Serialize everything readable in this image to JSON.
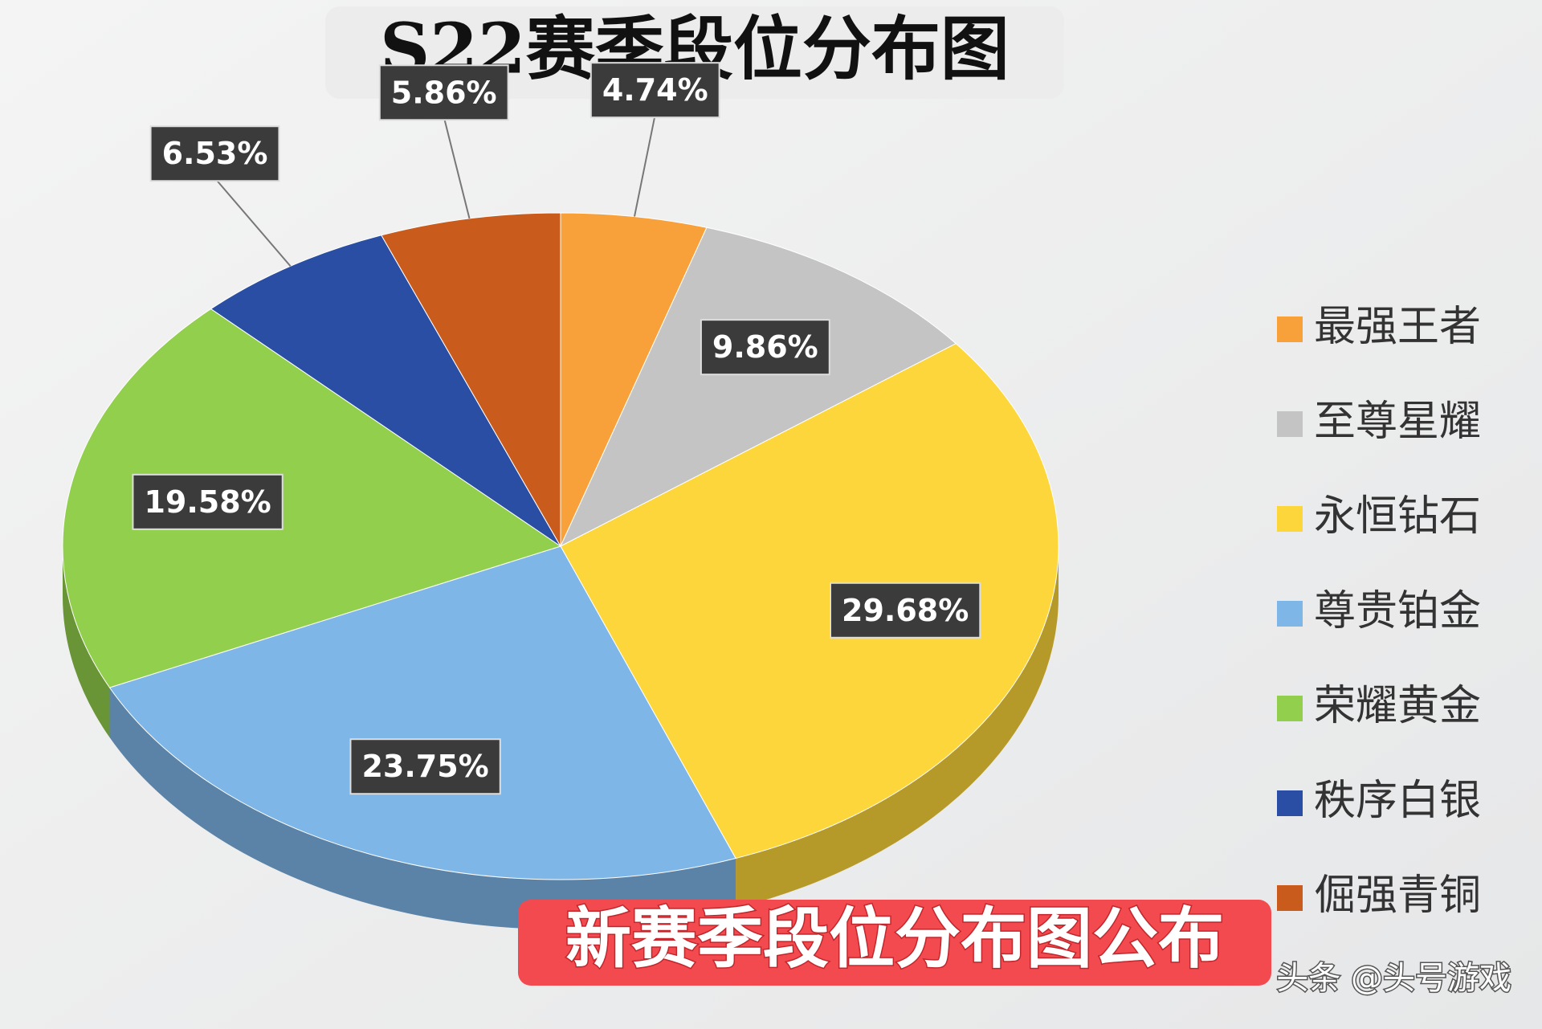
{
  "chart_data": {
    "type": "pie",
    "title": "S22赛季段位分布图",
    "categories": [
      "最强王者",
      "至尊星耀",
      "永恒钻石",
      "尊贵铂金",
      "荣耀黄金",
      "秩序白银",
      "倔强青铜"
    ],
    "values": [
      4.74,
      9.86,
      29.68,
      23.75,
      19.58,
      6.53,
      5.86
    ],
    "value_labels": [
      "4.74%",
      "9.86%",
      "29.68%",
      "23.75%",
      "19.58%",
      "6.53%",
      "5.86%"
    ],
    "colors": [
      "#f8a03a",
      "#c4c4c4",
      "#fcd63a",
      "#7fb6e8",
      "#92cf4d",
      "#2a4ea3",
      "#c95b1d"
    ],
    "legend": "right",
    "banner": "新赛季段位分布图公布",
    "watermark": "头条 @头号游戏"
  }
}
